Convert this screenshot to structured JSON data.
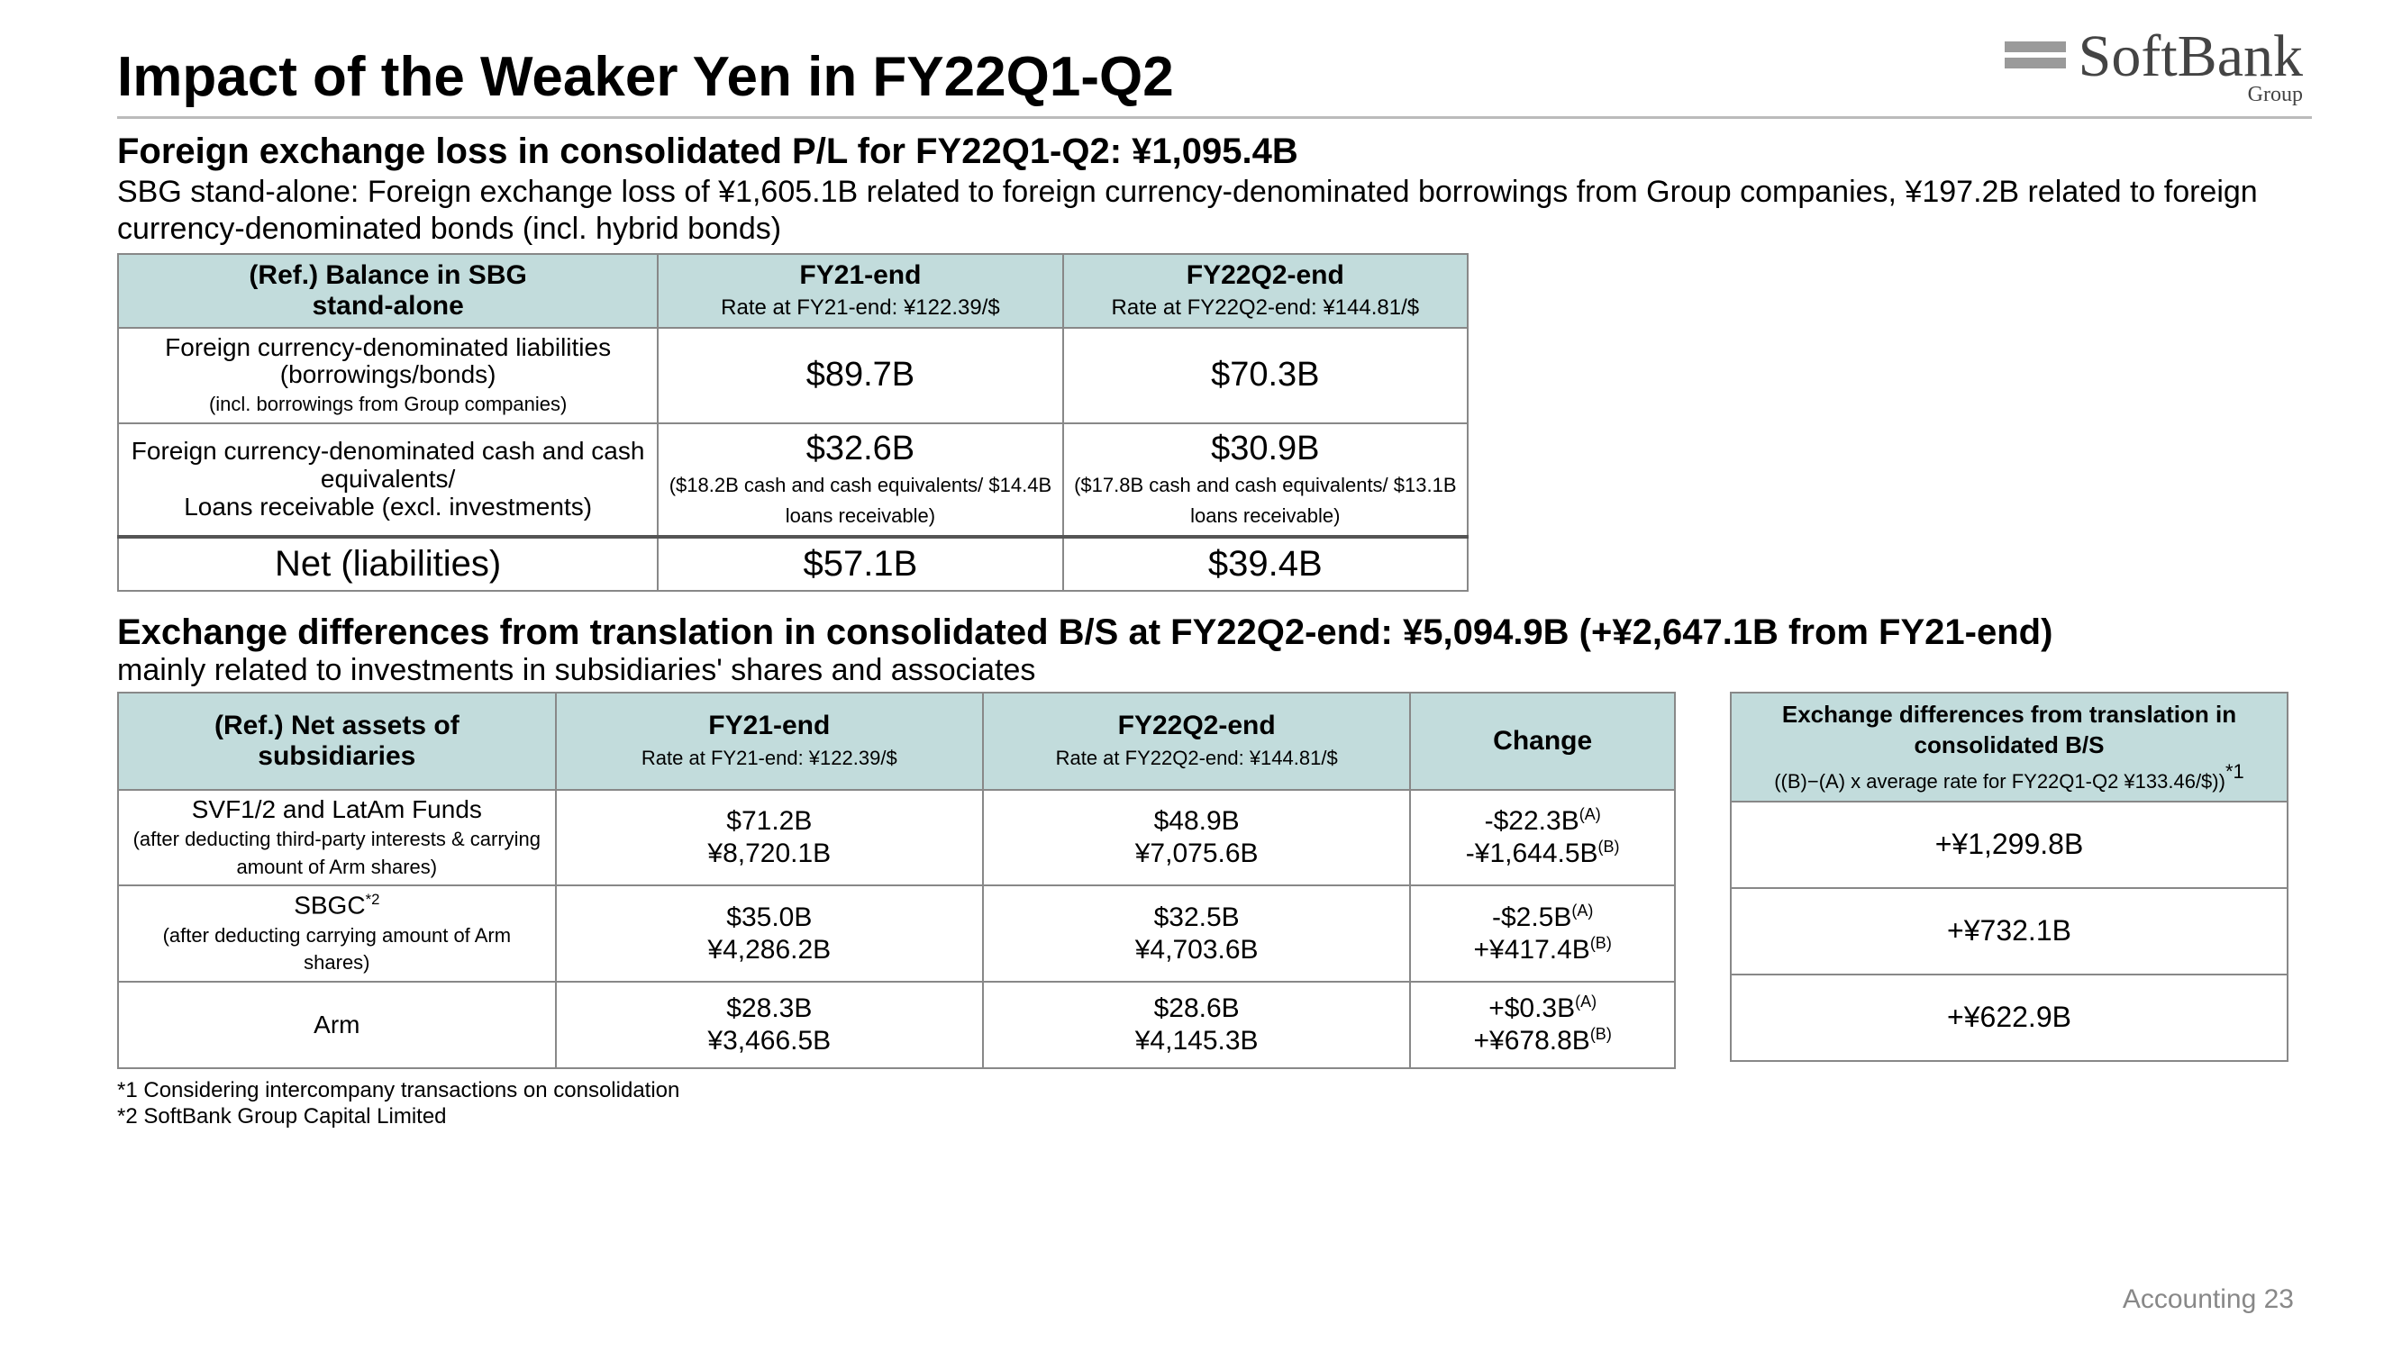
{
  "logo": {
    "name": "SoftBank",
    "sub": "Group"
  },
  "title": "Impact of the Weaker Yen in FY22Q1-Q2",
  "section1": {
    "heading": "Foreign exchange loss in consolidated P/L for FY22Q1-Q2: ¥1,095.4B",
    "desc": "SBG stand-alone: Foreign exchange loss of ¥1,605.1B related to foreign currency-denominated borrowings from Group companies, ¥197.2B related to foreign currency-denominated bonds (incl. hybrid bonds)"
  },
  "table1": {
    "header": {
      "col0a": "(Ref.) Balance in SBG",
      "col0b": "stand-alone",
      "col1a": "FY21-end",
      "col1b": "Rate at FY21-end: ¥122.39/$",
      "col2a": "FY22Q2-end",
      "col2b": "Rate at FY22Q2-end: ¥144.81/$"
    },
    "rows": [
      {
        "label_main": "Foreign currency-denominated liabilities (borrowings/bonds)",
        "label_sub": "(incl. borrowings from Group companies)",
        "v1": "$89.7B",
        "v1sub": "",
        "v2": "$70.3B",
        "v2sub": ""
      },
      {
        "label_main": "Foreign currency-denominated cash and cash equivalents/",
        "label_sub": "Loans receivable (excl. investments)",
        "v1": "$32.6B",
        "v1sub": "($18.2B cash and cash equivalents/ $14.4B loans receivable)",
        "v2": "$30.9B",
        "v2sub": "($17.8B cash and cash equivalents/ $13.1B loans receivable)"
      }
    ],
    "net": {
      "label": "Net (liabilities)",
      "v1": "$57.1B",
      "v2": "$39.4B"
    }
  },
  "section2": {
    "heading": "Exchange differences from translation in consolidated B/S at FY22Q2-end: ¥5,094.9B (+¥2,647.1B from FY21-end)",
    "desc": "mainly related to investments in subsidiaries' shares and associates"
  },
  "table2": {
    "header": {
      "col0a": "(Ref.) Net assets of",
      "col0b": "subsidiaries",
      "col1a": "FY21-end",
      "col1b": "Rate at FY21-end: ¥122.39/$",
      "col2a": "FY22Q2-end",
      "col2b": "Rate at FY22Q2-end: ¥144.81/$",
      "col3": "Change"
    },
    "rows": [
      {
        "label_main": "SVF1/2 and LatAm Funds",
        "label_sub": "(after deducting third-party interests & carrying amount of Arm shares)",
        "v1a": "$71.2B",
        "v1b": "¥8,720.1B",
        "v2a": "$48.9B",
        "v2b": "¥7,075.6B",
        "c1": "-$22.3B",
        "c2": "-¥1,644.5B",
        "ex": "+¥1,299.8B"
      },
      {
        "label_main": "SBGC",
        "label_sup": "*2",
        "label_sub": "(after deducting carrying amount of Arm shares)",
        "v1a": "$35.0B",
        "v1b": "¥4,286.2B",
        "v2a": "$32.5B",
        "v2b": "¥4,703.6B",
        "c1": "-$2.5B",
        "c2": "+¥417.4B",
        "ex": "+¥732.1B"
      },
      {
        "label_main": "Arm",
        "label_sub": "",
        "v1a": "$28.3B",
        "v1b": "¥3,466.5B",
        "v2a": "$28.6B",
        "v2b": "¥4,145.3B",
        "c1": "+$0.3B",
        "c2": "+¥678.8B",
        "ex": "+¥622.9B"
      }
    ]
  },
  "table3": {
    "header_a": "Exchange differences from translation in consolidated B/S",
    "header_b": "((B)−(A) x average rate for FY22Q1-Q2 ¥133.46/$))",
    "header_sup": "*1"
  },
  "footnotes": {
    "f1": "*1 Considering intercompany transactions on consolidation",
    "f2": "*2 SoftBank Group Capital Limited"
  },
  "pagelabel": "Accounting 23",
  "sup_a": "(A)",
  "sup_b": "(B)"
}
